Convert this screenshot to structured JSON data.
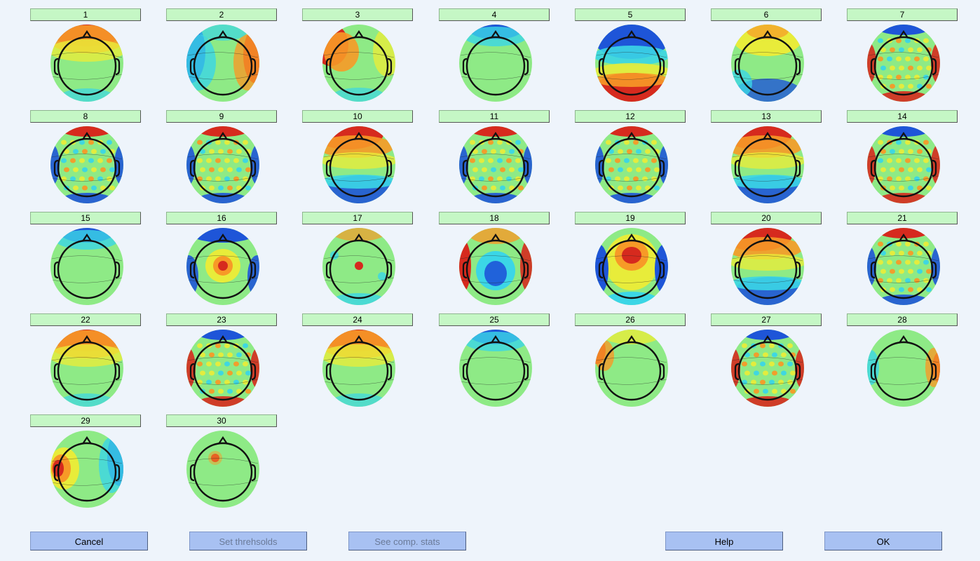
{
  "components": [
    {
      "label": "1",
      "pattern": "frontal-red"
    },
    {
      "label": "2",
      "pattern": "lateral-left-blue-right-red"
    },
    {
      "label": "3",
      "pattern": "lateral-left-red"
    },
    {
      "label": "4",
      "pattern": "frontal-blue-faint"
    },
    {
      "label": "5",
      "pattern": "frontal-blue-posterior-red"
    },
    {
      "label": "6",
      "pattern": "frontal-yellow-posterior-blue"
    },
    {
      "label": "7",
      "pattern": "high-frequency-blue"
    },
    {
      "label": "8",
      "pattern": "high-frequency-red"
    },
    {
      "label": "9",
      "pattern": "high-frequency-red"
    },
    {
      "label": "10",
      "pattern": "frontal-red-posterior-blue"
    },
    {
      "label": "11",
      "pattern": "high-frequency-red"
    },
    {
      "label": "12",
      "pattern": "high-frequency-red"
    },
    {
      "label": "13",
      "pattern": "frontal-red-posterior-blue"
    },
    {
      "label": "14",
      "pattern": "high-frequency-blue"
    },
    {
      "label": "15",
      "pattern": "frontal-blue-faint"
    },
    {
      "label": "16",
      "pattern": "central-red"
    },
    {
      "label": "17",
      "pattern": "central-dot"
    },
    {
      "label": "18",
      "pattern": "central-blue"
    },
    {
      "label": "19",
      "pattern": "frontocentral-red"
    },
    {
      "label": "20",
      "pattern": "frontal-red-posterior-blue"
    },
    {
      "label": "21",
      "pattern": "high-frequency-red"
    },
    {
      "label": "22",
      "pattern": "frontal-red"
    },
    {
      "label": "23",
      "pattern": "high-frequency-blue"
    },
    {
      "label": "24",
      "pattern": "frontal-red"
    },
    {
      "label": "25",
      "pattern": "frontal-blue-faint"
    },
    {
      "label": "26",
      "pattern": "left-red-faint"
    },
    {
      "label": "27",
      "pattern": "high-frequency-blue"
    },
    {
      "label": "28",
      "pattern": "right-red"
    },
    {
      "label": "29",
      "pattern": "left-temporal-red"
    },
    {
      "label": "30",
      "pattern": "frontal-dot"
    }
  ],
  "buttons": {
    "cancel": "Cancel",
    "set_thresholds": "Set threhsolds",
    "see_comp_stats": "See comp. stats",
    "help": "Help",
    "ok": "OK"
  },
  "colors": {
    "background": "#EEF4FB",
    "label_bg": "#C5F7C5",
    "button_bg": "#A8C1F2",
    "jet_red": "#D62A1E",
    "jet_orange": "#F79A27",
    "jet_yellow": "#E8EC3A",
    "jet_green": "#8EEA86",
    "jet_cyan": "#3BD6E6",
    "jet_blue": "#1E55D8"
  }
}
